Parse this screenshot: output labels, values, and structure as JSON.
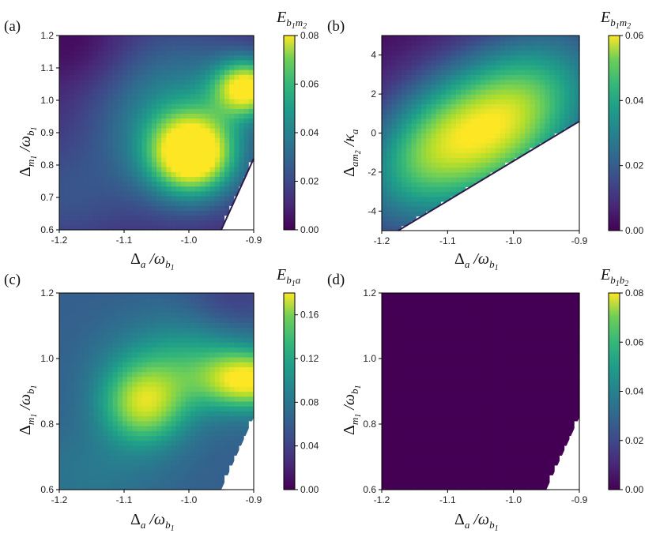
{
  "chart_data": [
    {
      "type": "heatmap",
      "panel_label": "(a)",
      "xlabel": {
        "main": "Δ",
        "sub": "a",
        "op": " /ω",
        "opsub": "b",
        "opsubsub": "1"
      },
      "ylabel": {
        "main": "Δ",
        "sub": "m",
        "subsub": "1",
        "op": " /ω",
        "opsub": "b",
        "opsubsub": "1"
      },
      "colorbar_label": {
        "main": "E",
        "sub": "b",
        "subsub": "1",
        "sub2": "m",
        "subsub2": "2"
      },
      "xlim": [
        -1.2,
        -0.9
      ],
      "ylim": [
        0.6,
        1.2
      ],
      "xticks": [
        "-1.2",
        "-1.1",
        "-1.0",
        "-0.9"
      ],
      "yticks": [
        "0.6",
        "0.7",
        "0.8",
        "0.9",
        "1.0",
        "1.1",
        "1.2"
      ],
      "clim": [
        0,
        0.08
      ],
      "cticks": [
        "0.00",
        "0.02",
        "0.04",
        "0.06",
        "0.08"
      ],
      "colormap": "viridis",
      "peaks": [
        {
          "x": -0.995,
          "y": 0.83,
          "value": 0.08
        },
        {
          "x": -0.91,
          "y": 1.04,
          "value": 0.075
        }
      ],
      "unstable_region_boundary": [
        [
          -0.95,
          0.6
        ],
        [
          -0.9,
          0.82
        ]
      ]
    },
    {
      "type": "heatmap",
      "panel_label": "(b)",
      "xlabel": {
        "main": "Δ",
        "sub": "a",
        "op": " /ω",
        "opsub": "b",
        "opsubsub": "1"
      },
      "ylabel": {
        "main": "Δ",
        "sub": "am",
        "subsub": "2",
        "op": " /κ",
        "opsub": "a",
        "opsubsub": ""
      },
      "colorbar_label": {
        "main": "E",
        "sub": "b",
        "subsub": "1",
        "sub2": "m",
        "subsub2": "2"
      },
      "xlim": [
        -1.2,
        -0.9
      ],
      "ylim": [
        -5,
        5
      ],
      "xticks": [
        "-1.2",
        "-1.1",
        "-1.0",
        "-0.9"
      ],
      "yticks": [
        "-4",
        "-2",
        "0",
        "2",
        "4"
      ],
      "clim": [
        0,
        0.06
      ],
      "cticks": [
        "0.00",
        "0.02",
        "0.04",
        "0.06"
      ],
      "colormap": "viridis",
      "peaks": [
        {
          "x": -1.03,
          "y": 0.4,
          "value": 0.06
        }
      ],
      "unstable_region_boundary": [
        [
          -1.175,
          -5
        ],
        [
          -0.9,
          0.6
        ]
      ]
    },
    {
      "type": "heatmap",
      "panel_label": "(c)",
      "xlabel": {
        "main": "Δ",
        "sub": "a",
        "op": " /ω",
        "opsub": "b",
        "opsubsub": "1"
      },
      "ylabel": {
        "main": "Δ",
        "sub": "m",
        "subsub": "1",
        "op": " /ω",
        "opsub": "b",
        "opsubsub": "1"
      },
      "colorbar_label": {
        "main": "E",
        "sub": "b",
        "subsub": "1",
        "sub2": "a",
        "subsub2": ""
      },
      "xlim": [
        -1.2,
        -0.9
      ],
      "ylim": [
        0.6,
        1.2
      ],
      "xticks": [
        "-1.2",
        "-1.1",
        "-1.0",
        "-0.9"
      ],
      "yticks": [
        "0.6",
        "0.8",
        "1.0",
        "1.2"
      ],
      "clim": [
        0,
        0.18
      ],
      "cticks": [
        "0.00",
        "0.04",
        "0.08",
        "0.12",
        "0.16"
      ],
      "colormap": "viridis",
      "peaks": [
        {
          "x": -1.07,
          "y": 0.86,
          "value": 0.155
        },
        {
          "x": -0.91,
          "y": 0.93,
          "value": 0.17
        }
      ],
      "unstable_region_boundary": [
        [
          -0.95,
          0.6
        ],
        [
          -0.9,
          0.82
        ]
      ]
    },
    {
      "type": "heatmap",
      "panel_label": "(d)",
      "xlabel": {
        "main": "Δ",
        "sub": "a",
        "op": " /ω",
        "opsub": "b",
        "opsubsub": "1"
      },
      "ylabel": {
        "main": "Δ",
        "sub": "m",
        "subsub": "1",
        "op": " /ω",
        "opsub": "b",
        "opsubsub": "1"
      },
      "colorbar_label": {
        "main": "E",
        "sub": "b",
        "subsub": "1",
        "sub2": "b",
        "subsub2": "2"
      },
      "xlim": [
        -1.2,
        -0.9
      ],
      "ylim": [
        0.6,
        1.2
      ],
      "xticks": [
        "-1.2",
        "-1.1",
        "-1.0",
        "-0.9"
      ],
      "yticks": [
        "0.6",
        "0.8",
        "1.0",
        "1.2"
      ],
      "clim": [
        0,
        0.08
      ],
      "cticks": [
        "0.00",
        "0.02",
        "0.04",
        "0.06",
        "0.08"
      ],
      "colormap": "viridis",
      "peaks": [],
      "uniform_value": 0,
      "unstable_region_boundary": [
        [
          -0.95,
          0.6
        ],
        [
          -0.9,
          0.82
        ]
      ]
    }
  ]
}
